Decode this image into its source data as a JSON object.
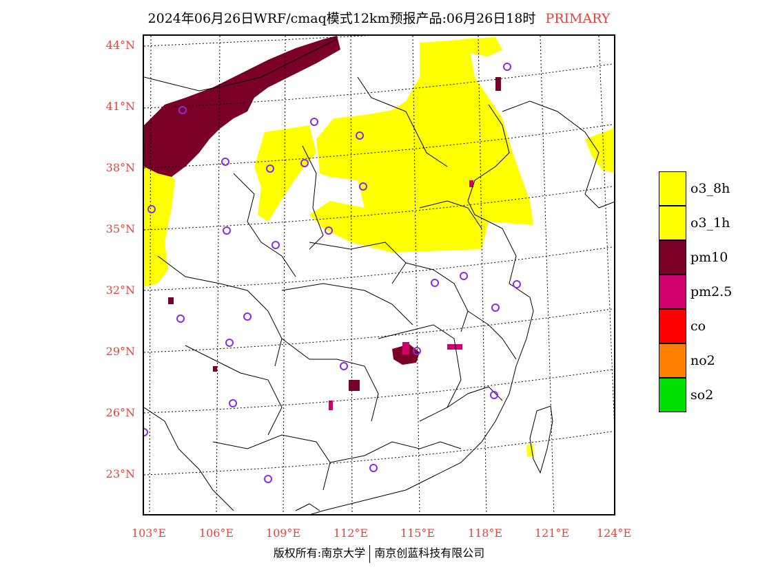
{
  "title": {
    "main": "2024年06月26日WRF/cmaq模式12km预报产品:06月26日18时",
    "tag": "PRIMARY"
  },
  "axes": {
    "lat_labels": [
      "44°N",
      "41°N",
      "38°N",
      "35°N",
      "32°N",
      "29°N",
      "26°N",
      "23°N"
    ],
    "lon_labels": [
      "103°E",
      "106°E",
      "109°E",
      "112°E",
      "115°E",
      "118°E",
      "121°E",
      "124°E"
    ]
  },
  "legend": {
    "items": [
      {
        "label": "o3_8h",
        "color": "#ffff00"
      },
      {
        "label": "o3_1h",
        "color": "#ffff00"
      },
      {
        "label": "pm10",
        "color": "#7a0028"
      },
      {
        "label": "pm2.5",
        "color": "#d0006e"
      },
      {
        "label": "co",
        "color": "#ff0000"
      },
      {
        "label": "no2",
        "color": "#ff7f00"
      },
      {
        "label": "so2",
        "color": "#00e000"
      }
    ]
  },
  "footer": {
    "left": "版权所有:南京大学",
    "right": "南京创蓝科技有限公司"
  },
  "colors": {
    "o3": "#ffff00",
    "pm10": "#7a0028",
    "pm25": "#d0006e",
    "station_marker": "#8a2be2",
    "label_red": "#e8403a"
  }
}
